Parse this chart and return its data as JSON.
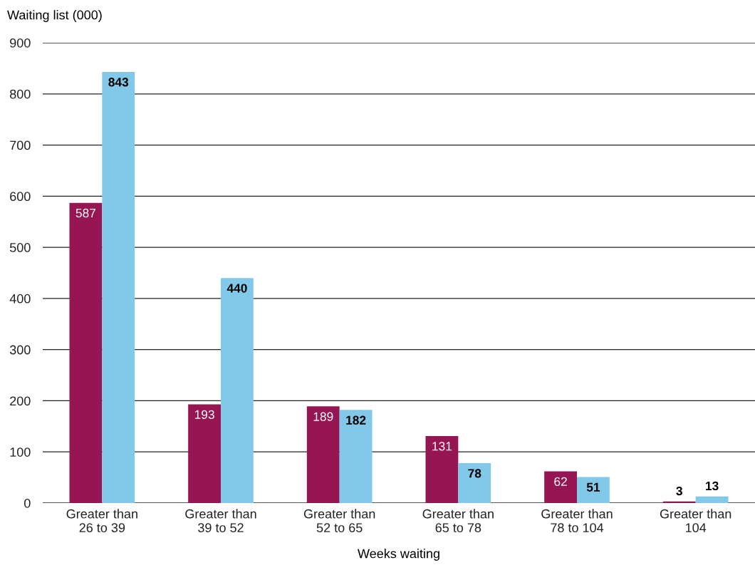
{
  "chart_data": {
    "type": "bar",
    "ylabel": "Waiting list (000)",
    "xlabel": "Weeks waiting",
    "categories": [
      "Greater than\n26 to 39",
      "Greater than\n39 to 52",
      "Greater than\n52 to 65",
      "Greater than\n65 to 78",
      "Greater than\n78 to 104",
      "Greater than\n104"
    ],
    "series": [
      {
        "color": "#961654",
        "values": [
          587,
          193,
          189,
          131,
          62,
          3
        ]
      },
      {
        "color": "#82c8e8",
        "values": [
          843,
          440,
          182,
          78,
          51,
          13
        ]
      }
    ],
    "ylim": [
      0,
      900
    ],
    "yticks": [
      0,
      100,
      200,
      300,
      400,
      500,
      600,
      700,
      800,
      900
    ],
    "grid": "y",
    "data_labels": true,
    "legend": false
  }
}
